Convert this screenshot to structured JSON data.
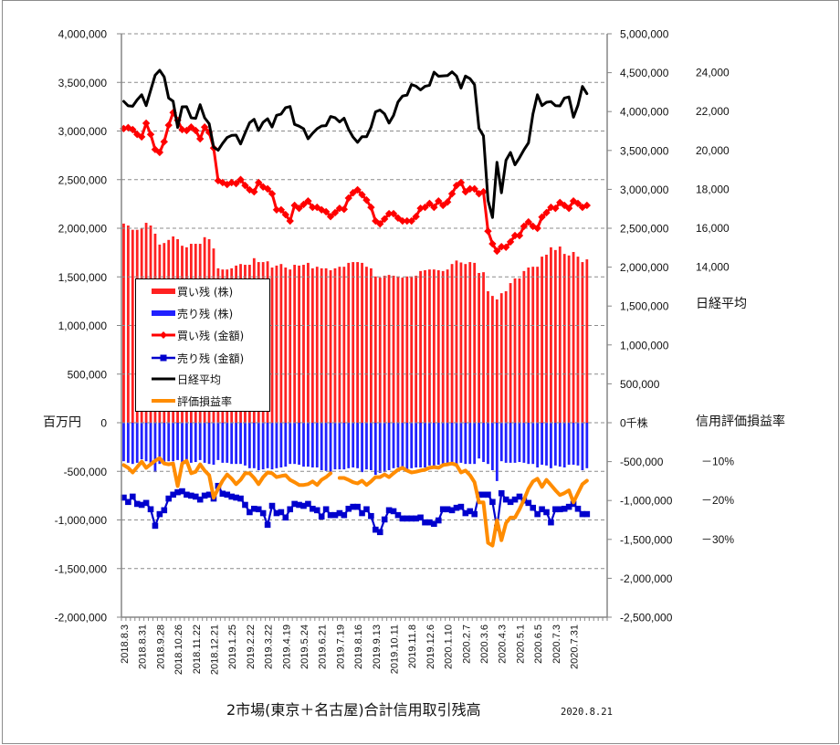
{
  "chart_data": {
    "type": "bar",
    "title": "2市場(東京＋名古屋)合計信用取引残高",
    "date": "2020.8.21",
    "xlabel": "",
    "grid": true,
    "legend": {
      "position": "left-middle"
    },
    "x_tick_every": 4,
    "x_tick_labels": [
      "2018.8.3",
      "2018.8.31",
      "2018.9.28",
      "2018.10.26",
      "2018.11.22",
      "2018.12.21",
      "2019.1.25",
      "2019.2.22",
      "2019.3.22",
      "2019.4.19",
      "2019.5.24",
      "2019.6.21",
      "2019.7.19",
      "2019.8.16",
      "2019.9.13",
      "2019.10.11",
      "2019.11.8",
      "2019.12.6",
      "2020.1.10",
      "2020.2.7",
      "2020.3.6",
      "2020.4.3",
      "2020.5.1",
      "2020.6.5",
      "2020.7.3",
      "2020.7.31"
    ],
    "axes": {
      "left": {
        "unit_label": "百万円",
        "range": [
          -2000000,
          4000000
        ],
        "ticks": [
          4000000,
          3500000,
          3000000,
          2500000,
          2000000,
          1500000,
          1000000,
          500000,
          0,
          -500000,
          -1000000,
          -1500000,
          -2000000
        ],
        "tick_labels": [
          "4,000,000",
          "3,500,000",
          "3,000,000",
          "2,500,000",
          "2,000,000",
          "1,500,000",
          "1,000,000",
          "500,000",
          "0",
          "-500,000",
          "-1,000,000",
          "-1,500,000",
          "-2,000,000"
        ]
      },
      "right": {
        "unit_label": "千株",
        "range": [
          -2500000,
          5000000
        ],
        "ticks": [
          5000000,
          4500000,
          4000000,
          3500000,
          3000000,
          2500000,
          2000000,
          1500000,
          1000000,
          500000,
          0,
          -500000,
          -1000000,
          -1500000,
          -2000000,
          -2500000
        ],
        "tick_labels": [
          "5,000,000",
          "4,500,000",
          "4,000,000",
          "3,500,000",
          "3,000,000",
          "2,500,000",
          "2,000,000",
          "1,500,000",
          "1,000,000",
          "500,000",
          "0千株",
          "-500,000",
          "-1,000,000",
          "-1,500,000",
          "-2,000,000",
          "-2,500,000"
        ]
      },
      "nikkei": {
        "label": "日経平均",
        "range": [
          -4000,
          26000
        ],
        "ticks": [
          24000,
          22000,
          20000,
          18000,
          16000,
          14000
        ],
        "tick_labels": [
          "24,000",
          "22,000",
          "20,000",
          "18,000",
          "16,000",
          "14,000"
        ]
      },
      "rate": {
        "label": "信用評価損益率",
        "unit": "%",
        "range": [
          -50,
          100
        ],
        "ticks": [
          -10,
          -20,
          -30
        ],
        "tick_labels": [
          "－10%",
          "－20%",
          "－30%"
        ]
      }
    },
    "series": [
      {
        "name": "買い残 (株)",
        "type": "bar",
        "axis": "right",
        "color": "#FF2121",
        "values": [
          2560000,
          2535000,
          2480000,
          2480000,
          2500000,
          2570000,
          2535000,
          2430000,
          2290000,
          2310000,
          2350000,
          2395000,
          2360000,
          2275000,
          2255000,
          2300000,
          2300000,
          2300000,
          2385000,
          2360000,
          2240000,
          1985000,
          1970000,
          1970000,
          1985000,
          2020000,
          2040000,
          2030000,
          2030000,
          2115000,
          2065000,
          2065000,
          2075000,
          1995000,
          2020000,
          2040000,
          1995000,
          1970000,
          2030000,
          2020000,
          2030000,
          2055000,
          1985000,
          2005000,
          1985000,
          1985000,
          1960000,
          1985000,
          2005000,
          2005000,
          2055000,
          2065000,
          2065000,
          2055000,
          2005000,
          1985000,
          1880000,
          1865000,
          1890000,
          1900000,
          1890000,
          1880000,
          1865000,
          1880000,
          1880000,
          1890000,
          1950000,
          1960000,
          1970000,
          1970000,
          1960000,
          1950000,
          1970000,
          2040000,
          2085000,
          2060000,
          2040000,
          2065000,
          2055000,
          1925000,
          1935000,
          1690000,
          1630000,
          1585000,
          1665000,
          1690000,
          1795000,
          1855000,
          1855000,
          1950000,
          1995000,
          2005000,
          2005000,
          2135000,
          2160000,
          2255000,
          2220000,
          2265000,
          2170000,
          2150000,
          2195000,
          2135000,
          2065000,
          2100000
        ]
      },
      {
        "name": "売り残 (株)",
        "type": "bar",
        "axis": "right",
        "color": "#2121FF",
        "values": [
          -495000,
          -515000,
          -530000,
          -515000,
          -470000,
          -495000,
          -515000,
          -635000,
          -530000,
          -515000,
          -495000,
          -495000,
          -480000,
          -505000,
          -530000,
          -515000,
          -505000,
          -480000,
          -515000,
          -530000,
          -540000,
          -480000,
          -515000,
          -515000,
          -530000,
          -530000,
          -530000,
          -550000,
          -585000,
          -585000,
          -610000,
          -600000,
          -585000,
          -600000,
          -585000,
          -575000,
          -565000,
          -530000,
          -530000,
          -540000,
          -565000,
          -565000,
          -575000,
          -575000,
          -610000,
          -620000,
          -635000,
          -600000,
          -600000,
          -600000,
          -585000,
          -575000,
          -585000,
          -635000,
          -600000,
          -610000,
          -670000,
          -645000,
          -635000,
          -610000,
          -585000,
          -575000,
          -575000,
          -600000,
          -585000,
          -575000,
          -575000,
          -575000,
          -550000,
          -565000,
          -540000,
          -530000,
          -530000,
          -540000,
          -530000,
          -515000,
          -530000,
          -530000,
          -530000,
          -460000,
          -505000,
          -530000,
          -610000,
          -750000,
          -495000,
          -515000,
          -515000,
          -515000,
          -505000,
          -515000,
          -530000,
          -530000,
          -575000,
          -540000,
          -550000,
          -585000,
          -550000,
          -565000,
          -575000,
          -540000,
          -540000,
          -550000,
          -610000,
          -585000
        ]
      },
      {
        "name": "買い残 (金額)",
        "type": "line",
        "marker": "diamond",
        "axis": "left",
        "color": "#FF0000",
        "values": [
          3025000,
          3035000,
          3015000,
          2965000,
          2940000,
          3080000,
          2965000,
          2810000,
          2780000,
          2890000,
          3060000,
          3190000,
          3110000,
          3015000,
          3005000,
          3040000,
          3005000,
          2920000,
          3040000,
          2985000,
          2825000,
          2490000,
          2470000,
          2450000,
          2470000,
          2460000,
          2500000,
          2440000,
          2395000,
          2375000,
          2470000,
          2425000,
          2405000,
          2355000,
          2190000,
          2190000,
          2140000,
          2075000,
          2235000,
          2205000,
          2245000,
          2280000,
          2215000,
          2215000,
          2190000,
          2170000,
          2120000,
          2160000,
          2205000,
          2195000,
          2310000,
          2365000,
          2395000,
          2345000,
          2290000,
          2215000,
          2075000,
          2045000,
          2095000,
          2150000,
          2150000,
          2105000,
          2075000,
          2075000,
          2075000,
          2120000,
          2205000,
          2215000,
          2255000,
          2215000,
          2280000,
          2235000,
          2270000,
          2355000,
          2440000,
          2470000,
          2375000,
          2405000,
          2405000,
          2355000,
          2375000,
          1970000,
          1840000,
          1765000,
          1810000,
          1805000,
          1860000,
          1925000,
          1925000,
          2020000,
          2065000,
          2020000,
          2000000,
          2115000,
          2160000,
          2215000,
          2205000,
          2265000,
          2235000,
          2205000,
          2280000,
          2255000,
          2215000,
          2235000
        ]
      },
      {
        "name": "売り残 (金額)",
        "type": "line",
        "marker": "square",
        "axis": "left",
        "color": "#0000CD",
        "values": [
          -770000,
          -815000,
          -760000,
          -835000,
          -845000,
          -825000,
          -890000,
          -1060000,
          -940000,
          -900000,
          -780000,
          -740000,
          -715000,
          -705000,
          -740000,
          -750000,
          -760000,
          -790000,
          -750000,
          -740000,
          -780000,
          -650000,
          -730000,
          -740000,
          -760000,
          -770000,
          -780000,
          -845000,
          -920000,
          -885000,
          -890000,
          -930000,
          -1050000,
          -855000,
          -930000,
          -920000,
          -975000,
          -890000,
          -835000,
          -845000,
          -855000,
          -835000,
          -885000,
          -900000,
          -965000,
          -890000,
          -950000,
          -950000,
          -930000,
          -950000,
          -885000,
          -865000,
          -865000,
          -930000,
          -890000,
          -960000,
          -1100000,
          -1125000,
          -995000,
          -900000,
          -910000,
          -950000,
          -985000,
          -985000,
          -985000,
          -985000,
          -975000,
          -1025000,
          -1025000,
          -1040000,
          -1005000,
          -890000,
          -890000,
          -900000,
          -875000,
          -865000,
          -930000,
          -910000,
          -940000,
          -740000,
          -740000,
          -740000,
          -815000,
          -1080000,
          -725000,
          -790000,
          -815000,
          -790000,
          -760000,
          -800000,
          -825000,
          -875000,
          -940000,
          -890000,
          -920000,
          -1025000,
          -890000,
          -890000,
          -885000,
          -865000,
          -835000,
          -885000,
          -940000,
          -940000
        ]
      },
      {
        "name": "日経平均",
        "type": "line",
        "marker": "none",
        "axis": "nikkei",
        "color": "#000000",
        "values": [
          22525,
          22298,
          22270,
          22601,
          22865,
          22307,
          23094,
          23869,
          24120,
          23784,
          22694,
          22532,
          21185,
          22244,
          22250,
          21680,
          21647,
          22351,
          21679,
          21375,
          20166,
          20015,
          20360,
          20666,
          20774,
          20789,
          20333,
          20901,
          21426,
          21603,
          21026,
          21451,
          21627,
          21206,
          21808,
          21871,
          22200,
          22259,
          21345,
          21250,
          21117,
          20601,
          20885,
          21117,
          21259,
          21276,
          21746,
          21686,
          21467,
          21658,
          21088,
          20685,
          20419,
          20711,
          20704,
          21200,
          21988,
          22079,
          21879,
          21410,
          21799,
          22493,
          22800,
          22851,
          23392,
          23303,
          23113,
          23294,
          23354,
          24023,
          23817,
          23837,
          23851,
          24041,
          23827,
          23205,
          23828,
          23688,
          23387,
          21143,
          20750,
          17431,
          16553,
          19389,
          17820,
          19499,
          19897,
          19262,
          19619,
          20037,
          20388,
          21878,
          22864,
          22305,
          22479,
          22512,
          22306,
          22291,
          22696,
          22751,
          21710,
          22330,
          23289,
          22920
        ]
      },
      {
        "name": "評価損益率",
        "type": "line",
        "marker": "none",
        "axis": "rate",
        "color": "#FF8C00",
        "values": [
          -10.9,
          -11.6,
          -12.8,
          -11.4,
          -10.0,
          -11.6,
          -10.7,
          -9.8,
          -9.1,
          -10.5,
          -10.7,
          -10.5,
          -16.3,
          -10.5,
          -9.8,
          -13.0,
          -12.6,
          -10.7,
          -12.3,
          -13.5,
          -19.3,
          -17.0,
          -14.9,
          -13.3,
          -14.4,
          -15.8,
          -14.7,
          -13.0,
          -13.0,
          -14.2,
          -15.8,
          -14.0,
          -12.8,
          -13.0,
          -14.0,
          -13.7,
          -13.5,
          -14.7,
          -15.3,
          -16.0,
          -16.0,
          -15.8,
          -15.1,
          -16.0,
          -14.7,
          -14.0,
          -13.0,
          null,
          -14.2,
          -14.2,
          -14.7,
          -15.3,
          -15.6,
          -14.9,
          -16.0,
          -15.1,
          -14.0,
          -14.0,
          -13.3,
          -14.0,
          -13.0,
          -12.1,
          -11.6,
          -12.3,
          -12.8,
          -12.6,
          -12.3,
          -12.1,
          -11.6,
          -11.4,
          -11.6,
          -10.9,
          -10.7,
          -10.5,
          -10.9,
          -12.8,
          -12.3,
          -13.5,
          -15.3,
          -20.5,
          -20.5,
          -30.9,
          -31.6,
          -25.1,
          -30.2,
          -25.8,
          -24.4,
          -24.4,
          -22.3,
          -19.8,
          -17.0,
          -15.1,
          -14.4,
          -16.5,
          -14.7,
          -16.0,
          -17.4,
          -18.6,
          -18.1,
          -17.4,
          -20.5,
          -18.1,
          -15.8,
          -14.9
        ]
      }
    ]
  }
}
